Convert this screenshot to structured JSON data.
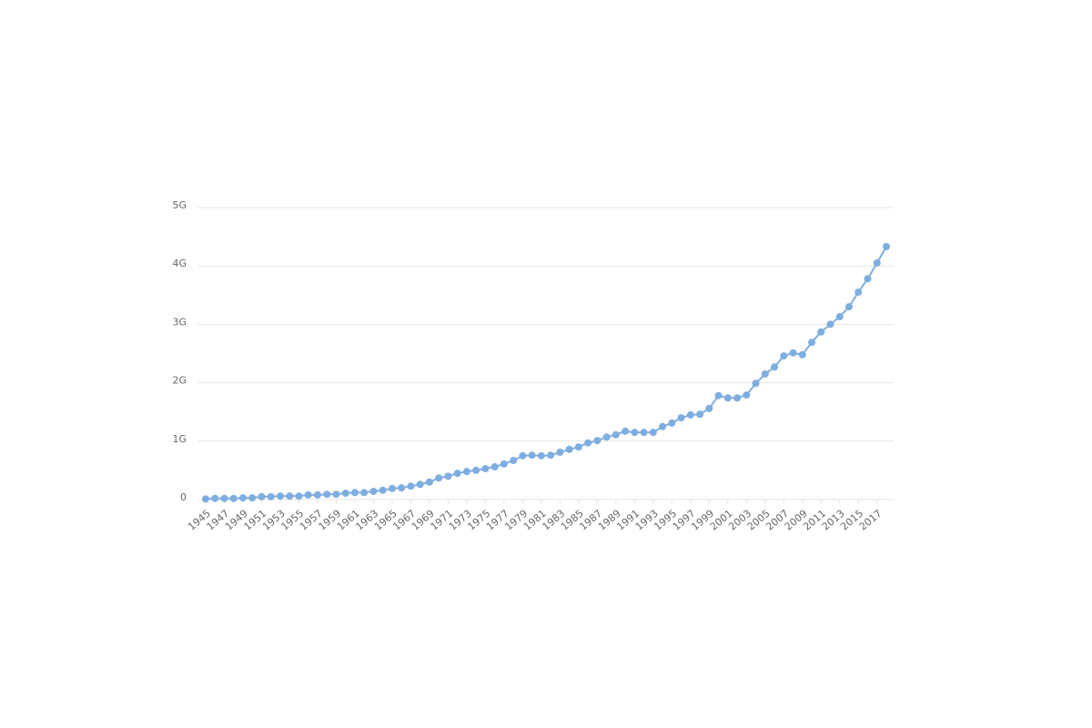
{
  "chart_data": {
    "type": "line",
    "x": [
      1945,
      1946,
      1947,
      1948,
      1949,
      1950,
      1951,
      1952,
      1953,
      1954,
      1955,
      1956,
      1957,
      1958,
      1959,
      1960,
      1961,
      1962,
      1963,
      1964,
      1965,
      1966,
      1967,
      1968,
      1969,
      1970,
      1971,
      1972,
      1973,
      1974,
      1975,
      1976,
      1977,
      1978,
      1979,
      1980,
      1981,
      1982,
      1983,
      1984,
      1985,
      1986,
      1987,
      1988,
      1989,
      1990,
      1991,
      1992,
      1993,
      1994,
      1995,
      1996,
      1997,
      1998,
      1999,
      2000,
      2001,
      2002,
      2003,
      2004,
      2005,
      2006,
      2007,
      2008,
      2009,
      2010,
      2011,
      2012,
      2013,
      2014,
      2015,
      2016,
      2017,
      2018
    ],
    "series": [
      {
        "color": "#7eaee0",
        "values": [
          10000000,
          20000000,
          20000000,
          20000000,
          30000000,
          30000000,
          50000000,
          50000000,
          60000000,
          60000000,
          60000000,
          80000000,
          80000000,
          90000000,
          90000000,
          110000000,
          120000000,
          120000000,
          140000000,
          160000000,
          190000000,
          200000000,
          230000000,
          260000000,
          300000000,
          370000000,
          400000000,
          450000000,
          480000000,
          500000000,
          530000000,
          560000000,
          610000000,
          670000000,
          750000000,
          760000000,
          750000000,
          760000000,
          810000000,
          860000000,
          900000000,
          970000000,
          1010000000,
          1070000000,
          1110000000,
          1170000000,
          1150000000,
          1150000000,
          1150000000,
          1250000000,
          1310000000,
          1400000000,
          1450000000,
          1460000000,
          1560000000,
          1780000000,
          1740000000,
          1740000000,
          1790000000,
          1990000000,
          2150000000,
          2270000000,
          2460000000,
          2510000000,
          2480000000,
          2690000000,
          2870000000,
          3000000000,
          3130000000,
          3300000000,
          3550000000,
          3780000000,
          4050000000,
          4330000000
        ]
      }
    ],
    "xlim": [
      1945,
      2018
    ],
    "xticks": [
      1945,
      1947,
      1949,
      1951,
      1953,
      1955,
      1957,
      1959,
      1961,
      1963,
      1965,
      1967,
      1969,
      1971,
      1973,
      1975,
      1977,
      1979,
      1981,
      1983,
      1985,
      1987,
      1989,
      1991,
      1993,
      1995,
      1997,
      1999,
      2001,
      2003,
      2005,
      2007,
      2009,
      2011,
      2013,
      2015,
      2017
    ],
    "ylim": [
      0,
      5000000000
    ],
    "yticks": [
      0,
      {
        "value": 1000000000,
        "label": "1G"
      },
      {
        "value": 2000000000,
        "label": "2G"
      },
      {
        "value": 3000000000,
        "label": "3G"
      },
      {
        "value": 4000000000,
        "label": "4G"
      },
      {
        "value": 5000000000,
        "label": "5G"
      }
    ],
    "grid": true
  }
}
